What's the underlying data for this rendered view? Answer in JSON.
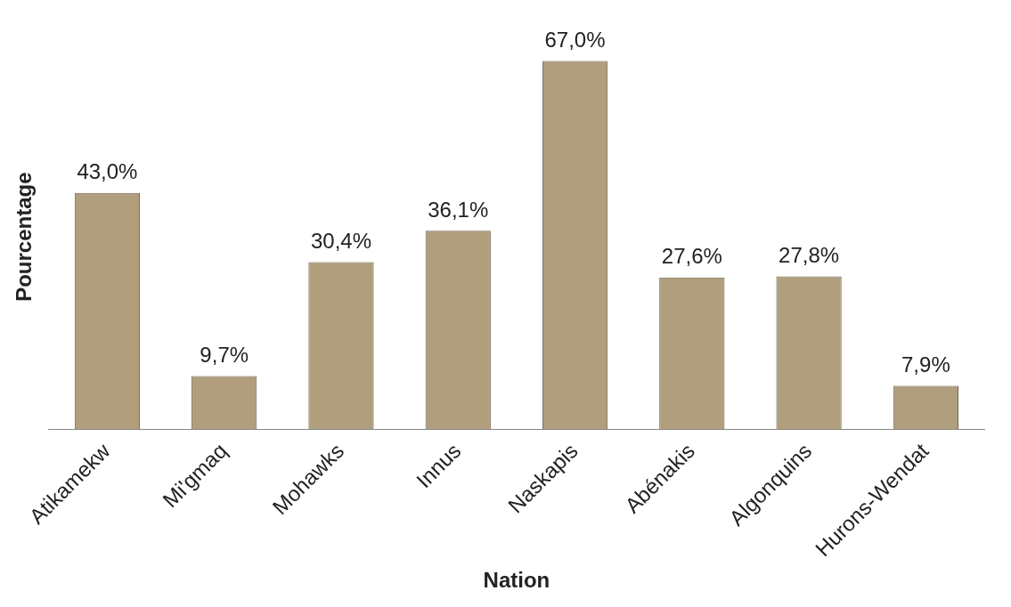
{
  "chart_data": {
    "type": "bar",
    "xlabel": "Nation",
    "ylabel": "Pourcentage",
    "categories": [
      "Atikamekw",
      "Mi'gmaq",
      "Mohawks",
      "Innus",
      "Naskapis",
      "Abénakis",
      "Algonquins",
      "Hurons-Wendat"
    ],
    "values": [
      43.0,
      9.7,
      30.4,
      36.1,
      67.0,
      27.6,
      27.8,
      7.9
    ],
    "value_labels": [
      "43,0%",
      "9,7%",
      "30,4%",
      "36,1%",
      "67,0%",
      "27,6%",
      "27,8%",
      "7,9%"
    ],
    "color": "#b09e7c",
    "grid": false,
    "tick_labels": "x"
  }
}
